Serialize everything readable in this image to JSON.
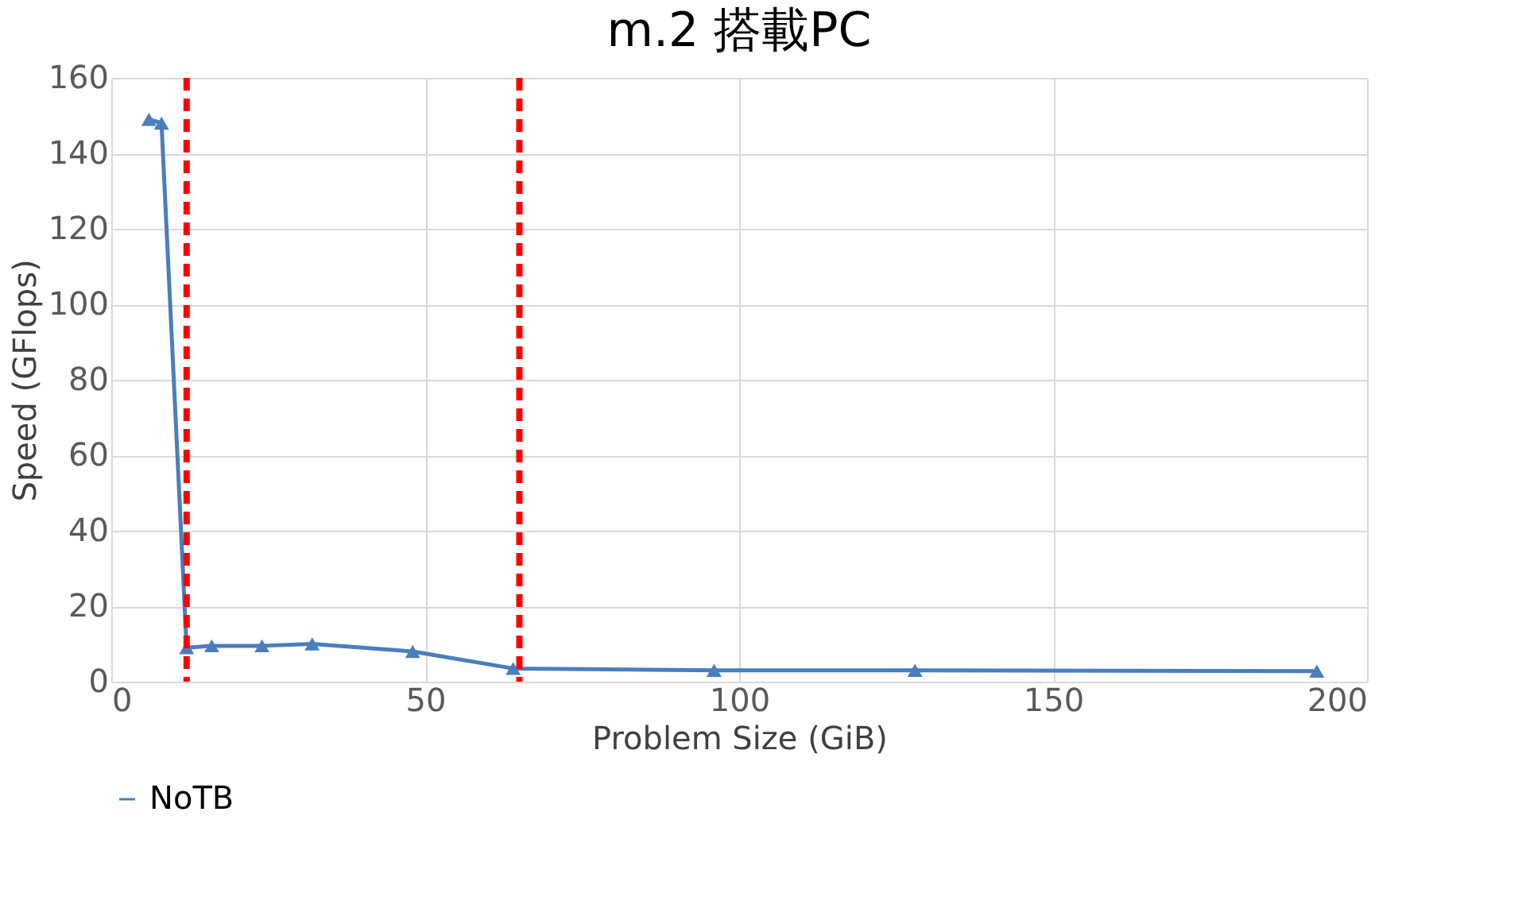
{
  "chart_data": {
    "type": "line",
    "title": "m.2 搭載PC",
    "xlabel": "Problem Size (GiB)",
    "ylabel": "Speed (GFlops)",
    "xlim": [
      0,
      200
    ],
    "xticks": [
      0,
      50,
      100,
      150,
      200
    ],
    "ylim": [
      0,
      160
    ],
    "yticks": [
      0,
      20,
      40,
      60,
      80,
      100,
      120,
      140,
      160
    ],
    "grid": true,
    "legend": "bottom",
    "marker": "triangle",
    "line_style": "solid",
    "series": [
      {
        "name": "NoTB",
        "color": "#4a7ebb",
        "x": [
          6,
          8,
          12,
          16,
          24,
          32,
          48,
          64,
          96,
          128,
          192
        ],
        "values": [
          149,
          148,
          9,
          9.5,
          9.5,
          10,
          8,
          3.5,
          3,
          3,
          2.8
        ]
      }
    ],
    "ref_lines": [
      {
        "axis": "x",
        "value": 12,
        "label": null,
        "color": "#ff0000",
        "line_style": "dashed"
      },
      {
        "axis": "x",
        "value": 65,
        "label": null,
        "color": "#ff0000",
        "line_style": "dashed"
      }
    ]
  }
}
